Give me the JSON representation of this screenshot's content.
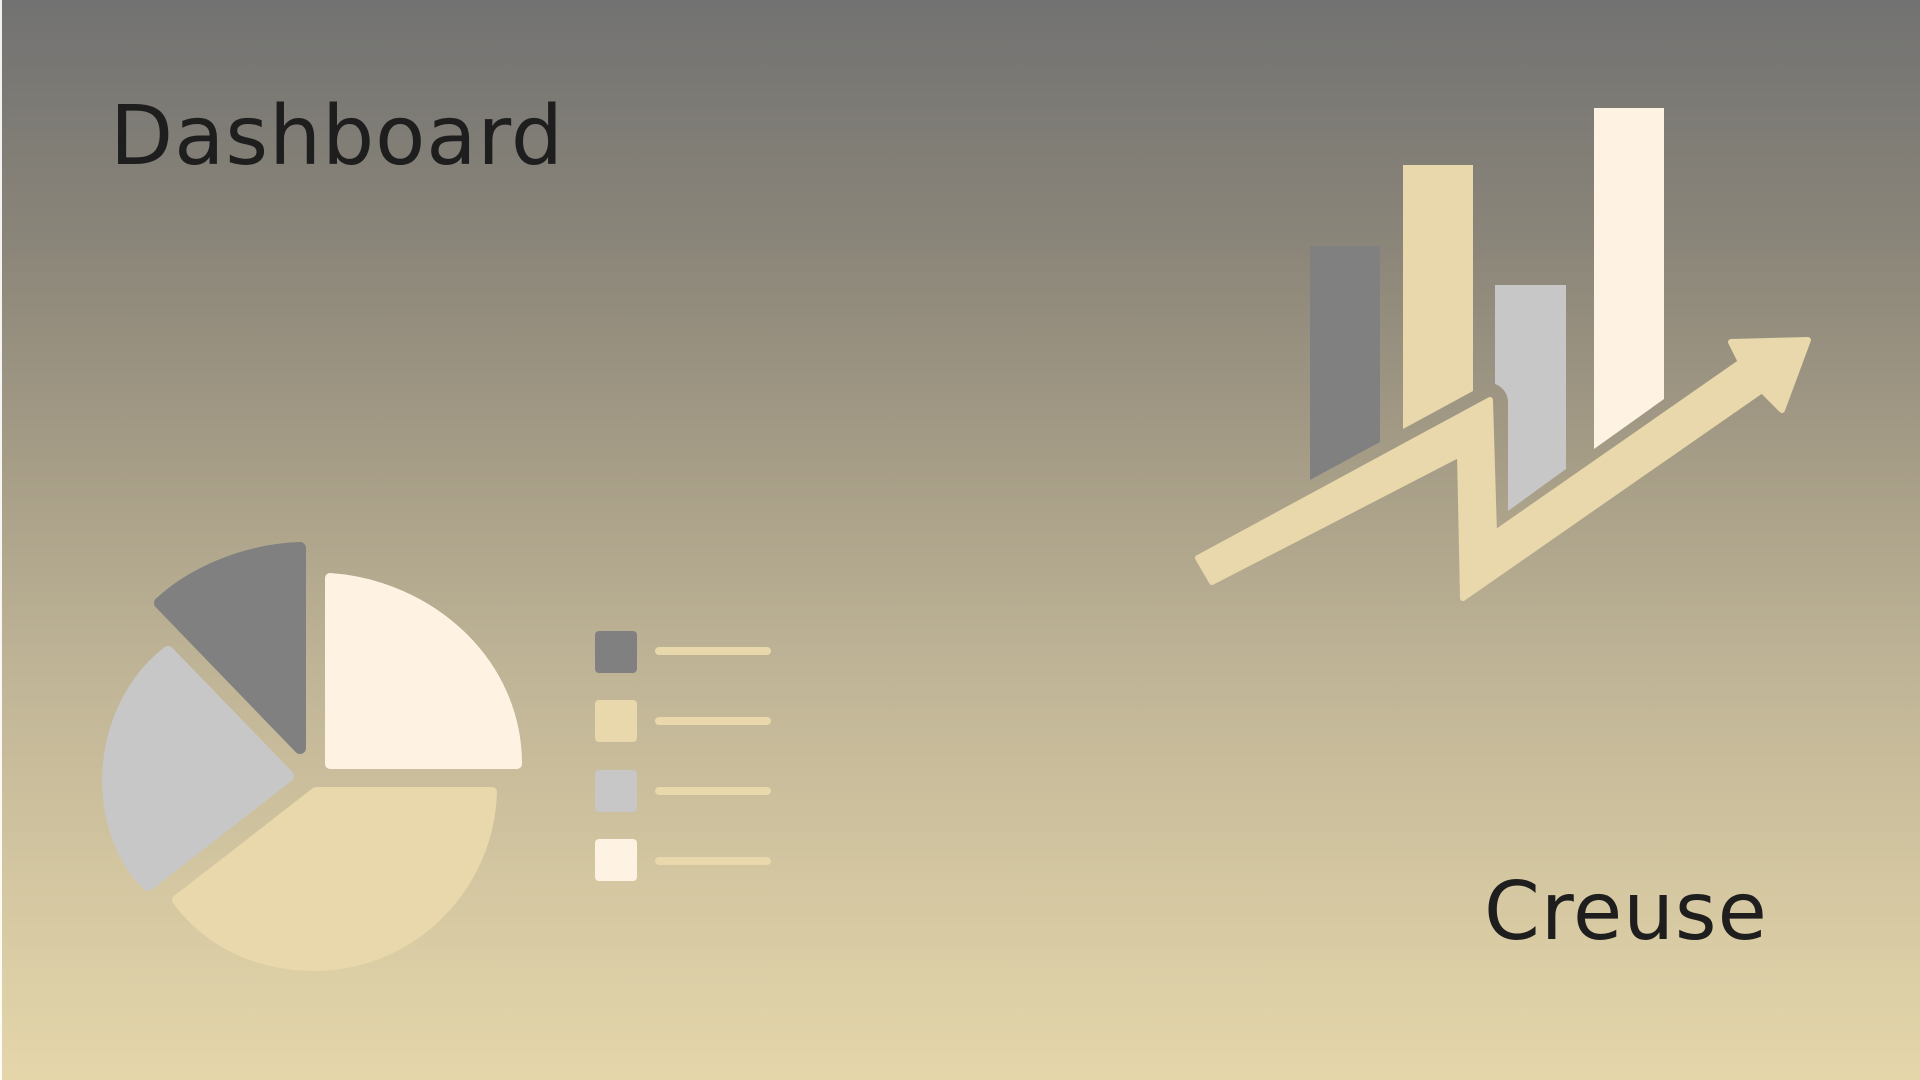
{
  "slide": {
    "title": "Dashboard",
    "subtitle": "Creuse"
  },
  "icons": {
    "pie": "pie-chart-illustration-icon",
    "legend": "legend-list-illustration-icon",
    "growth": "growth-bar-chart-illustration-icon",
    "arrow": "trend-arrow-icon"
  },
  "palette": {
    "dark_gray": "#808080",
    "beige": "#e9d8ab",
    "light_gray": "#c7c7c7",
    "cream": "#fef3e2",
    "text": "#1e1e1e"
  }
}
